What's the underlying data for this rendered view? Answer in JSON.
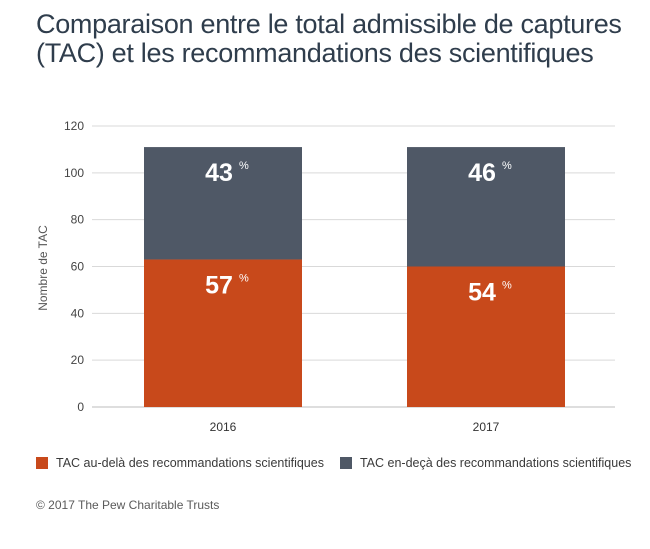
{
  "colors": {
    "above": "#c8491b",
    "below": "#4f5866",
    "grid": "#d9d9d9",
    "title": "#2f3d4c"
  },
  "chart_data": {
    "type": "bar",
    "stacked": true,
    "title": "Comparaison entre le total admissible de captures (TAC) et les recommandations des scientifiques",
    "ylabel": "Nombre de TAC",
    "ylim": [
      0,
      120
    ],
    "yticks": [
      0,
      20,
      40,
      60,
      80,
      100,
      120
    ],
    "grid": true,
    "legend_position": "bottom-left",
    "categories": [
      "2016",
      "2017"
    ],
    "series": [
      {
        "name": "TAC au-delà des recommandations scientifiques",
        "color": "#c8491b",
        "values": [
          63,
          60
        ],
        "labels": [
          "57",
          "54"
        ]
      },
      {
        "name": "TAC en-deçà des recommandations scientifiques",
        "color": "#4f5866",
        "values": [
          48,
          51
        ],
        "labels": [
          "43",
          "46"
        ]
      }
    ],
    "label_unit": "%"
  },
  "source": "© 2017 The Pew Charitable Trusts"
}
